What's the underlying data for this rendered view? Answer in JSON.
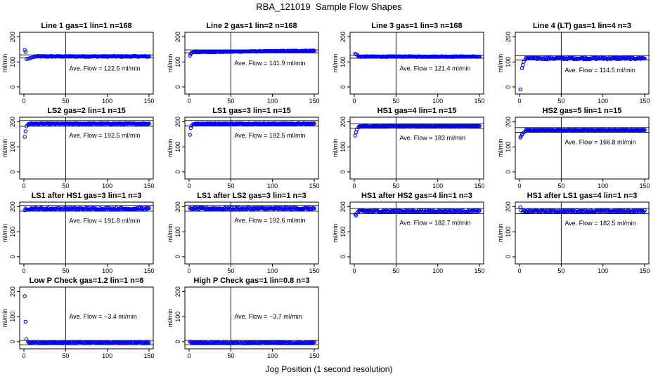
{
  "figure": {
    "title": "RBA_121019  Sample Flow Shapes",
    "xlabel": "Jog Position (1 second resolution)"
  },
  "colors": {
    "points": "#0000ff",
    "axes": "#000000"
  },
  "chart_data": [
    {
      "type": "scatter",
      "title": "Line 1 gas=1 lin=1 n=168",
      "ylabel": "ml/min",
      "annotation": "Ave. Flow =  122.5  ml/min",
      "xlim": [
        0,
        150
      ],
      "ylim": [
        -20,
        210
      ],
      "xticks": [
        0,
        50,
        100,
        150
      ],
      "yticks": [
        0,
        100,
        200
      ],
      "vline_x": 50,
      "hlines": [
        128,
        116
      ],
      "start_points": [
        [
          1,
          148
        ],
        [
          2,
          140
        ],
        [
          3,
          112
        ],
        [
          5,
          112
        ],
        [
          7,
          115
        ],
        [
          9,
          117
        ],
        [
          11,
          119
        ],
        [
          13,
          120
        ]
      ],
      "plateau": 122,
      "noise": 2
    },
    {
      "type": "scatter",
      "title": "Line 2 gas=1 lin=2 n=168",
      "ylabel": "ml/min",
      "annotation": "Ave. Flow =  141.9  ml/min",
      "xlim": [
        0,
        150
      ],
      "ylim": [
        -20,
        210
      ],
      "xticks": [
        0,
        50,
        100,
        150
      ],
      "yticks": [
        0,
        100,
        200
      ],
      "vline_x": 50,
      "hlines": [
        148,
        136
      ],
      "start_points": [
        [
          1,
          125
        ],
        [
          2,
          132
        ],
        [
          3,
          137
        ],
        [
          5,
          139
        ]
      ],
      "plateau": 142,
      "noise": 1.5,
      "drift": 6
    },
    {
      "type": "scatter",
      "title": "Line 3 gas=1 lin=3 n=168",
      "ylabel": "ml/min",
      "annotation": "Ave. Flow =  121.4  ml/min",
      "xlim": [
        0,
        150
      ],
      "ylim": [
        -20,
        210
      ],
      "xticks": [
        0,
        50,
        100,
        150
      ],
      "yticks": [
        0,
        100,
        200
      ],
      "vline_x": 50,
      "hlines": [
        127,
        115
      ],
      "start_points": [
        [
          1,
          133
        ],
        [
          2,
          130
        ],
        [
          4,
          127
        ]
      ],
      "plateau": 121.4,
      "noise": 1.5
    },
    {
      "type": "scatter",
      "title": "Line 4 (LT) gas=1 lin=4 n=3",
      "ylabel": "ml/min",
      "annotation": "Ave. Flow =  114.5  ml/min",
      "xlim": [
        0,
        150
      ],
      "ylim": [
        -20,
        210
      ],
      "xticks": [
        0,
        50,
        100,
        150
      ],
      "yticks": [
        0,
        100,
        200
      ],
      "vline_x": 50,
      "hlines": [
        125,
        108
      ],
      "start_points": [
        [
          1,
          -10
        ],
        [
          3,
          75
        ],
        [
          4,
          88
        ],
        [
          5,
          100
        ],
        [
          7,
          110
        ]
      ],
      "plateau": 114.5,
      "noise": 4
    },
    {
      "type": "scatter",
      "title": "LS2 gas=2 lin=1 n=15",
      "ylabel": "ml/min",
      "annotation": "Ave. Flow =  192.5  ml/min",
      "xlim": [
        0,
        150
      ],
      "ylim": [
        -20,
        210
      ],
      "xticks": [
        0,
        50,
        100,
        150
      ],
      "yticks": [
        0,
        100,
        200
      ],
      "vline_x": 50,
      "hlines": [
        205,
        182
      ],
      "start_points": [
        [
          1,
          140
        ],
        [
          2,
          162
        ],
        [
          3,
          182
        ],
        [
          5,
          190
        ]
      ],
      "plateau": 192.5,
      "noise": 1.5
    },
    {
      "type": "scatter",
      "title": "LS1 gas=3 lin=1 n=15",
      "ylabel": "ml/min",
      "annotation": "Ave. Flow =  192.5  ml/min",
      "xlim": [
        0,
        150
      ],
      "ylim": [
        -20,
        210
      ],
      "xticks": [
        0,
        50,
        100,
        150
      ],
      "yticks": [
        0,
        100,
        200
      ],
      "vline_x": 50,
      "hlines": [
        205,
        183
      ],
      "start_points": [
        [
          1,
          148
        ],
        [
          2,
          175
        ],
        [
          3,
          185
        ],
        [
          5,
          190
        ]
      ],
      "plateau": 192.5,
      "noise": 1.5
    },
    {
      "type": "scatter",
      "title": "HS1 gas=4 lin=1 n=15",
      "ylabel": "ml/min",
      "annotation": "Ave. Flow =  183  ml/min",
      "xlim": [
        0,
        150
      ],
      "ylim": [
        -20,
        210
      ],
      "xticks": [
        0,
        50,
        100,
        150
      ],
      "yticks": [
        0,
        100,
        200
      ],
      "vline_x": 50,
      "hlines": [
        192,
        174
      ],
      "start_points": [
        [
          1,
          145
        ],
        [
          2,
          158
        ],
        [
          3,
          170
        ],
        [
          5,
          178
        ]
      ],
      "plateau": 183,
      "noise": 1.5
    },
    {
      "type": "scatter",
      "title": "HS2 gas=5 lin=1 n=15",
      "ylabel": "ml/min",
      "annotation": "Ave. Flow =  166.8  ml/min",
      "xlim": [
        0,
        150
      ],
      "ylim": [
        -20,
        210
      ],
      "xticks": [
        0,
        50,
        100,
        150
      ],
      "yticks": [
        0,
        100,
        200
      ],
      "vline_x": 50,
      "hlines": [
        177,
        158
      ],
      "start_points": [
        [
          1,
          137
        ],
        [
          2,
          143
        ],
        [
          3,
          150
        ],
        [
          5,
          157
        ],
        [
          7,
          162
        ]
      ],
      "plateau": 166.8,
      "noise": 1.5
    },
    {
      "type": "scatter",
      "title": "LS1 after HS1 gas=3 lin=1 n=3",
      "ylabel": "ml/min",
      "annotation": "Ave. Flow =  191.8  ml/min",
      "xlim": [
        0,
        150
      ],
      "ylim": [
        -20,
        210
      ],
      "xticks": [
        0,
        50,
        100,
        150
      ],
      "yticks": [
        0,
        100,
        200
      ],
      "vline_x": 50,
      "hlines": [
        205,
        182
      ],
      "start_points": [
        [
          1,
          186
        ],
        [
          2,
          193
        ]
      ],
      "plateau": 191.8,
      "noise": 4
    },
    {
      "type": "scatter",
      "title": "LS1 after LS2 gas=3 lin=1 n=3",
      "ylabel": "ml/min",
      "annotation": "Ave. Flow =  192.6  ml/min",
      "xlim": [
        0,
        150
      ],
      "ylim": [
        -20,
        210
      ],
      "xticks": [
        0,
        50,
        100,
        150
      ],
      "yticks": [
        0,
        100,
        200
      ],
      "vline_x": 50,
      "hlines": [
        205,
        182
      ],
      "start_points": [
        [
          1,
          195
        ],
        [
          2,
          192
        ]
      ],
      "plateau": 192.6,
      "noise": 4
    },
    {
      "type": "scatter",
      "title": "HS1 after HS2 gas=4 lin=1 n=3",
      "ylabel": "ml/min",
      "annotation": "Ave. Flow =  182.7  ml/min",
      "xlim": [
        0,
        150
      ],
      "ylim": [
        -20,
        210
      ],
      "xticks": [
        0,
        50,
        100,
        150
      ],
      "yticks": [
        0,
        100,
        200
      ],
      "vline_x": 50,
      "hlines": [
        193,
        172
      ],
      "start_points": [
        [
          1,
          170
        ],
        [
          2,
          165
        ],
        [
          4,
          178
        ]
      ],
      "plateau": 182.7,
      "noise": 4
    },
    {
      "type": "scatter",
      "title": "HS1 after LS1 gas=4 lin=1 n=3",
      "ylabel": "ml/min",
      "annotation": "Ave. Flow =  182.5  ml/min",
      "xlim": [
        0,
        150
      ],
      "ylim": [
        -20,
        210
      ],
      "xticks": [
        0,
        50,
        100,
        150
      ],
      "yticks": [
        0,
        100,
        200
      ],
      "vline_x": 50,
      "hlines": [
        193,
        172
      ],
      "start_points": [
        [
          1,
          198
        ],
        [
          2,
          185
        ],
        [
          4,
          180
        ]
      ],
      "plateau": 182.5,
      "noise": 4
    },
    {
      "type": "scatter",
      "title": "Low P Check gas=1.2 lin=1 n=6",
      "ylabel": "ml/min",
      "annotation": "Ave. Flow =  −3.4  ml/min",
      "xlim": [
        0,
        150
      ],
      "ylim": [
        -20,
        210
      ],
      "xticks": [
        0,
        50,
        100,
        150
      ],
      "yticks": [
        0,
        100,
        200
      ],
      "vline_x": 50,
      "hlines": [
        5,
        -12
      ],
      "start_points": [
        [
          1,
          182
        ],
        [
          2,
          80
        ],
        [
          3,
          10
        ],
        [
          5,
          0
        ]
      ],
      "plateau": -3.4,
      "noise": 3
    },
    {
      "type": "scatter",
      "title": "High P Check gas=1 lin=0.8 n=3",
      "ylabel": "ml/min",
      "annotation": "Ave. Flow =  −3.7  ml/min",
      "xlim": [
        0,
        150
      ],
      "ylim": [
        -20,
        210
      ],
      "xticks": [
        0,
        50,
        100,
        150
      ],
      "yticks": [
        0,
        100,
        200
      ],
      "vline_x": 50,
      "hlines": [
        5,
        -12
      ],
      "start_points": [
        [
          1,
          0
        ],
        [
          2,
          -2
        ]
      ],
      "plateau": -3.7,
      "noise": 3
    }
  ]
}
